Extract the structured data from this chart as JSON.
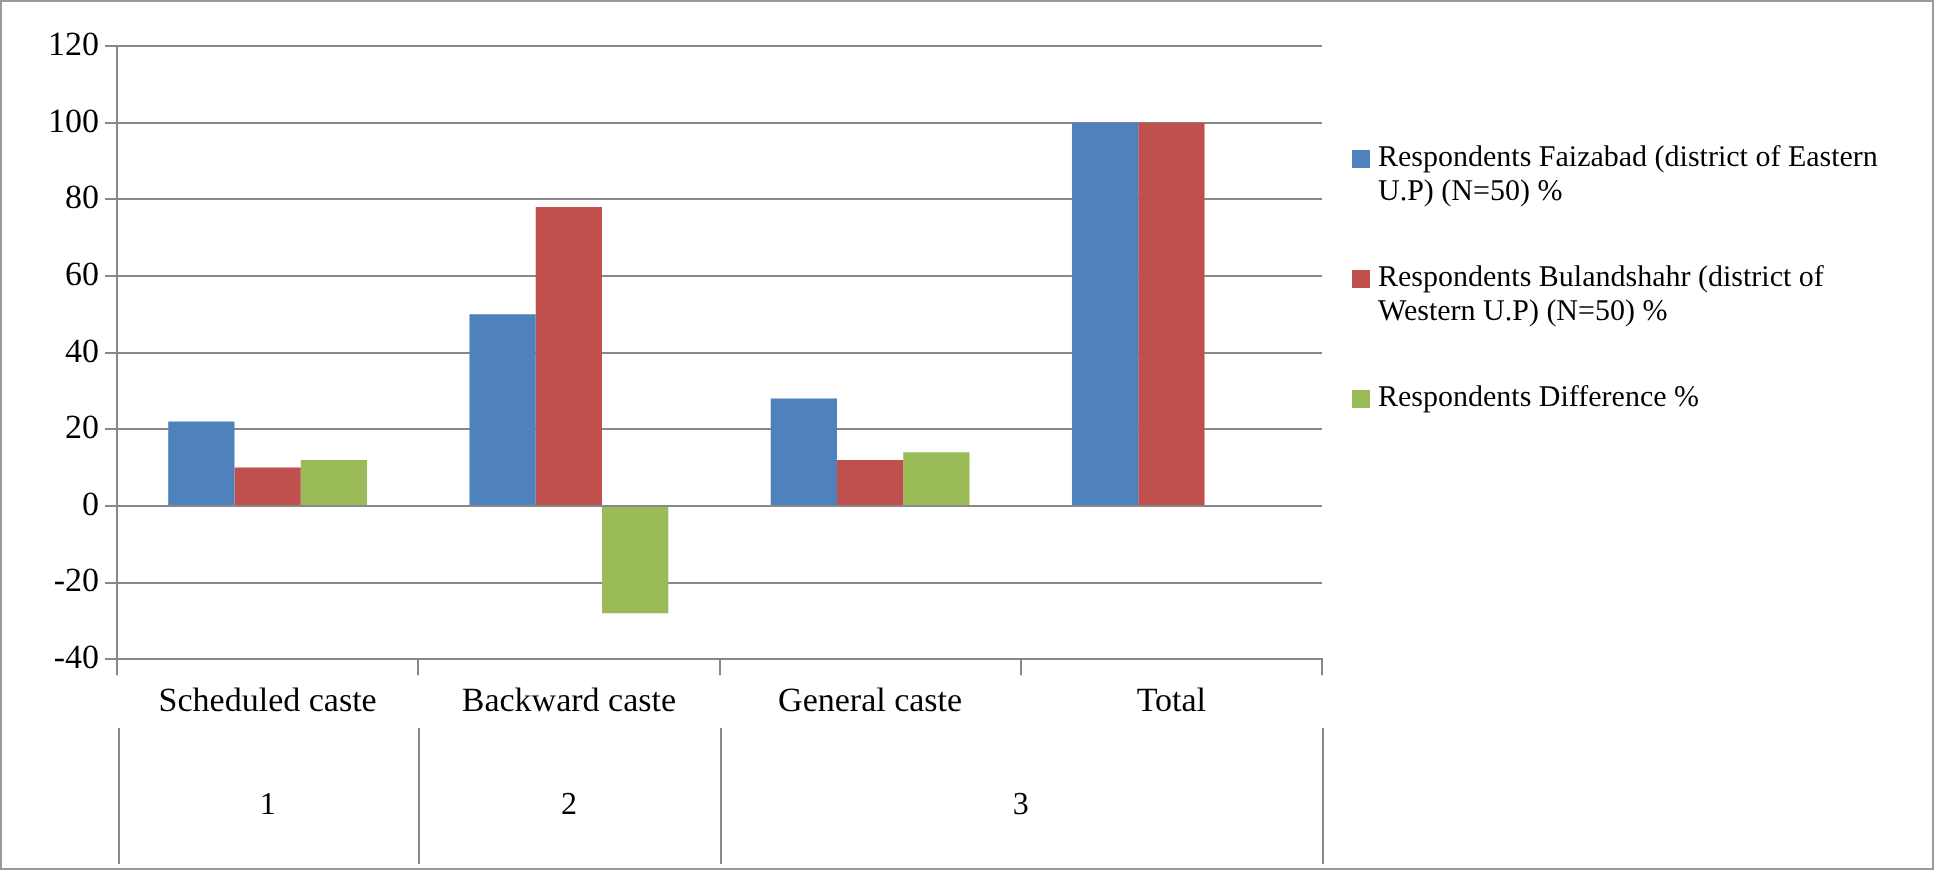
{
  "chart_data": {
    "type": "bar",
    "categories": [
      "Scheduled caste",
      "Backward caste",
      "General caste",
      "Total"
    ],
    "series": [
      {
        "name": "Respondents Faizabad (district of Eastern U.P) (N=50) %",
        "color": "#4f81bd",
        "values": [
          22,
          50,
          28,
          100
        ]
      },
      {
        "name": "Respondents Bulandshahr (district of Western U.P) (N=50) %",
        "color": "#c0504d",
        "values": [
          10,
          78,
          12,
          100
        ]
      },
      {
        "name": "Respondents Difference %",
        "color": "#9bbb59",
        "values": [
          12,
          -28,
          14,
          null
        ]
      }
    ],
    "ylim": [
      -40,
      120
    ],
    "yticks": [
      -40,
      -20,
      0,
      20,
      40,
      60,
      80,
      100,
      120
    ],
    "grid": "y",
    "legend": "right",
    "annotations": [
      "1",
      "2",
      "3"
    ]
  }
}
